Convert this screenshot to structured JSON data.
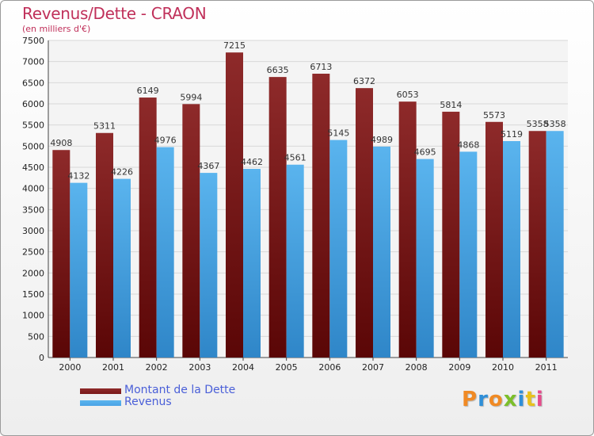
{
  "chart_data": {
    "type": "bar",
    "title": "Revenus/Dette - CRAON",
    "subtitle": "(en milliers d'€)",
    "categories": [
      "2000",
      "2001",
      "2002",
      "2003",
      "2004",
      "2005",
      "2006",
      "2007",
      "2008",
      "2009",
      "2010",
      "2011"
    ],
    "series": [
      {
        "name": "Montant de la Dette",
        "color": "#7a1818",
        "values": [
          4908,
          5311,
          6149,
          5994,
          7215,
          6635,
          6713,
          6372,
          6053,
          5814,
          5573,
          5358
        ]
      },
      {
        "name": "Revenus",
        "color": "#4aa3e6",
        "values": [
          4132,
          4226,
          4976,
          4367,
          4462,
          4561,
          5145,
          4989,
          4695,
          4868,
          5119,
          5358
        ]
      }
    ],
    "ylim": [
      0,
      7500
    ],
    "yticks": [
      0,
      500,
      1000,
      1500,
      2000,
      2500,
      3000,
      3500,
      4000,
      4500,
      5000,
      5500,
      6000,
      6500,
      7000,
      7500
    ],
    "grid": true,
    "legend_position": "bottom-left"
  },
  "brand": {
    "letters": [
      "P",
      "r",
      "o",
      "x",
      "i",
      "t",
      "i"
    ],
    "colors": [
      "#f08a24",
      "#2f8fd8",
      "#f08a24",
      "#7bbf2a",
      "#2f8fd8",
      "#e8c21c",
      "#e64b8c"
    ]
  }
}
